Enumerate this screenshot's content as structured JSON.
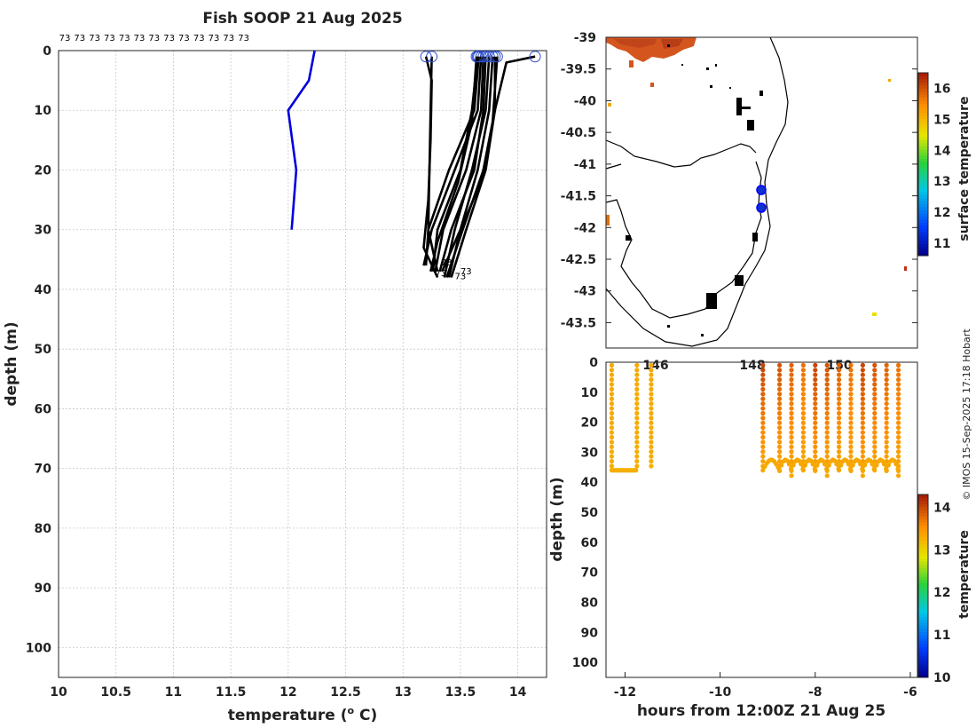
{
  "title": "Fish SOOP 21 Aug 2025",
  "credit": "© IMOS 15-Sep-2025 17:18 Hobart",
  "chart_data": [
    {
      "type": "line",
      "name": "profiles",
      "xlabel": "temperature (",
      "xlabel_sup": "o",
      "xlabel_unit": " C)",
      "ylabel": "depth (m)",
      "xlim": [
        10,
        14.25
      ],
      "ylim": [
        105,
        0
      ],
      "xticks": [
        10,
        10.5,
        11,
        11.5,
        12,
        12.5,
        13,
        13.5,
        14
      ],
      "yticks": [
        0,
        10,
        20,
        30,
        40,
        50,
        60,
        70,
        80,
        90,
        100
      ],
      "top_labels": [
        "73",
        "73",
        "73",
        "73",
        "73",
        "73",
        "73",
        "73",
        "73",
        "73",
        "73",
        "73",
        "73"
      ],
      "end_labels": [
        "73",
        "73",
        "73",
        "73"
      ],
      "series": [
        {
          "name": "blue profile",
          "color": "#0000dd",
          "points": [
            [
              12.23,
              0
            ],
            [
              12.18,
              5
            ],
            [
              12.0,
              10
            ],
            [
              12.07,
              20
            ],
            [
              12.03,
              30
            ]
          ]
        },
        {
          "name": "p1",
          "color": "#000000",
          "points": [
            [
              13.25,
              1
            ],
            [
              13.24,
              10
            ],
            [
              13.23,
              20
            ],
            [
              13.22,
              30
            ],
            [
              13.3,
              37
            ]
          ]
        },
        {
          "name": "p2",
          "color": "#000000",
          "points": [
            [
              13.2,
              1
            ],
            [
              13.25,
              5
            ],
            [
              13.24,
              15
            ],
            [
              13.22,
              25
            ],
            [
              13.18,
              33
            ],
            [
              13.3,
              38
            ]
          ]
        },
        {
          "name": "p3",
          "color": "#000000",
          "points": [
            [
              13.65,
              1
            ],
            [
              13.6,
              10
            ],
            [
              13.5,
              20
            ],
            [
              13.3,
              30
            ],
            [
              13.26,
              37
            ]
          ]
        },
        {
          "name": "p4",
          "color": "#000000",
          "points": [
            [
              13.7,
              1
            ],
            [
              13.68,
              10
            ],
            [
              13.55,
              20
            ],
            [
              13.35,
              30
            ],
            [
              13.28,
              37
            ]
          ]
        },
        {
          "name": "p5",
          "color": "#000000",
          "points": [
            [
              13.72,
              1
            ],
            [
              13.7,
              10
            ],
            [
              13.62,
              20
            ],
            [
              13.42,
              30
            ],
            [
              13.32,
              37
            ]
          ]
        },
        {
          "name": "p6",
          "color": "#000000",
          "points": [
            [
              13.75,
              1
            ],
            [
              13.72,
              10
            ],
            [
              13.6,
              20
            ],
            [
              13.45,
              30
            ],
            [
              13.36,
              38
            ]
          ]
        },
        {
          "name": "p7",
          "color": "#000000",
          "points": [
            [
              13.78,
              1
            ],
            [
              13.75,
              10
            ],
            [
              13.65,
              20
            ],
            [
              13.5,
              30
            ],
            [
              13.4,
              38
            ]
          ]
        },
        {
          "name": "p8",
          "color": "#000000",
          "points": [
            [
              13.68,
              1
            ],
            [
              13.65,
              10
            ],
            [
              13.45,
              20
            ],
            [
              13.25,
              30
            ],
            [
              13.18,
              36
            ]
          ]
        },
        {
          "name": "p9",
          "color": "#000000",
          "points": [
            [
              13.8,
              1
            ],
            [
              13.8,
              10
            ],
            [
              13.72,
              20
            ],
            [
              13.55,
              30
            ],
            [
              13.42,
              38
            ]
          ]
        },
        {
          "name": "p10",
          "color": "#000000",
          "points": [
            [
              13.66,
              1
            ],
            [
              13.62,
              10
            ],
            [
              13.4,
              20
            ],
            [
              13.22,
              30
            ],
            [
              13.2,
              36
            ]
          ]
        },
        {
          "name": "p11",
          "color": "#000000",
          "points": [
            [
              13.82,
              1
            ],
            [
              13.78,
              12
            ],
            [
              13.68,
              22
            ],
            [
              13.5,
              30
            ],
            [
              13.34,
              37
            ]
          ]
        },
        {
          "name": "p12",
          "color": "#000000",
          "points": [
            [
              13.64,
              1
            ],
            [
              13.6,
              12
            ],
            [
              13.48,
              22
            ],
            [
              13.3,
              32
            ],
            [
              13.24,
              37
            ]
          ]
        },
        {
          "name": "p13",
          "color": "#000000",
          "points": [
            [
              14.15,
              1
            ],
            [
              13.9,
              2
            ],
            [
              13.8,
              10
            ],
            [
              13.7,
              20
            ],
            [
              13.52,
              30
            ],
            [
              13.38,
              38
            ]
          ]
        }
      ]
    },
    {
      "type": "heatmap",
      "name": "surface temperature map",
      "ylim": [
        -39,
        -43.9
      ],
      "yticks": [
        "-39",
        "-39.5",
        "-40",
        "-40.5",
        "-41",
        "-41.5",
        "-42",
        "-42.5",
        "-43",
        "-43.5"
      ],
      "xticks": [
        "146",
        "148",
        "150"
      ],
      "colorbar_label": "surface temperature",
      "colorbar_ticks": [
        "16",
        "15",
        "14",
        "13",
        "12",
        "11"
      ],
      "colorbar_range": [
        10.6,
        16.5
      ],
      "track_points": [
        [
          -41.43
        ],
        [
          -41.72
        ]
      ]
    },
    {
      "type": "scatter",
      "name": "depth time section",
      "xlabel": "hours from 12:00Z 21 Aug 25",
      "ylabel": "depth (m)",
      "xlim": [
        -12.4,
        -5.85
      ],
      "ylim": [
        105,
        0
      ],
      "xticks": [
        "-12",
        "-10",
        "-8",
        "-6"
      ],
      "yticks": [
        "0",
        "10",
        "20",
        "30",
        "40",
        "50",
        "60",
        "70",
        "80",
        "90",
        "100"
      ],
      "colorbar_label": "temperature",
      "colorbar_ticks": [
        "14",
        "13",
        "12",
        "11",
        "10"
      ],
      "colorbar_range": [
        10,
        14.3
      ],
      "casts_early": [
        -12.28,
        -11.75,
        -11.45
      ],
      "casts_late": [
        -9.1,
        -8.75,
        -8.5,
        -8.25,
        -8.0,
        -7.75,
        -7.5,
        -7.25,
        -7.0,
        -6.75,
        -6.5,
        -6.25
      ]
    }
  ]
}
